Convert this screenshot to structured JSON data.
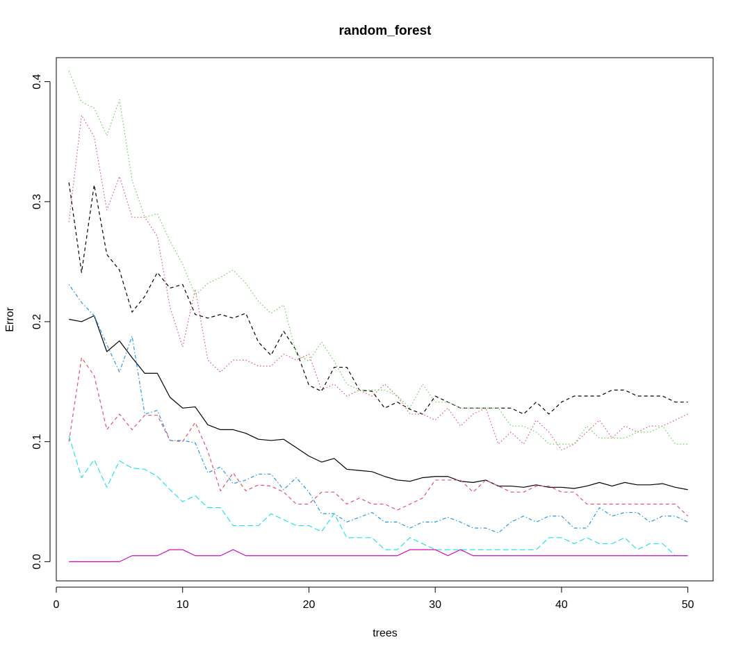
{
  "chart_data": {
    "type": "line",
    "title": "random_forest",
    "xlabel": "trees",
    "ylabel": "Error",
    "xlim": [
      0,
      52
    ],
    "ylim": [
      -0.016,
      0.42
    ],
    "x_ticks": [
      0,
      10,
      20,
      30,
      40,
      50
    ],
    "y_ticks": [
      0.0,
      0.1,
      0.2,
      0.3,
      0.4
    ],
    "y_tick_labels": [
      "0.0",
      "0.1",
      "0.2",
      "0.3",
      "0.4"
    ],
    "grid": false,
    "x": [
      1,
      2,
      3,
      4,
      5,
      6,
      7,
      8,
      9,
      10,
      11,
      12,
      13,
      14,
      15,
      16,
      17,
      18,
      19,
      20,
      21,
      22,
      23,
      24,
      25,
      26,
      27,
      28,
      29,
      30,
      31,
      32,
      33,
      34,
      35,
      36,
      37,
      38,
      39,
      40,
      41,
      42,
      43,
      44,
      45,
      46,
      47,
      48,
      49,
      50
    ],
    "series": [
      {
        "color": "#000000",
        "dash": "solid",
        "values": [
          0.202,
          0.2,
          0.205,
          0.175,
          0.184,
          0.17,
          0.157,
          0.157,
          0.137,
          0.128,
          0.129,
          0.114,
          0.11,
          0.11,
          0.107,
          0.102,
          0.101,
          0.102,
          0.095,
          0.088,
          0.083,
          0.086,
          0.077,
          0.076,
          0.075,
          0.071,
          0.068,
          0.067,
          0.07,
          0.071,
          0.071,
          0.067,
          0.066,
          0.068,
          0.063,
          0.063,
          0.062,
          0.064,
          0.062,
          0.062,
          0.061,
          0.063,
          0.066,
          0.063,
          0.066,
          0.064,
          0.064,
          0.065,
          0.062,
          0.06
        ]
      },
      {
        "color": "#000000",
        "dash": "dashed",
        "values": [
          0.316,
          0.241,
          0.314,
          0.256,
          0.243,
          0.208,
          0.221,
          0.241,
          0.228,
          0.231,
          0.206,
          0.203,
          0.206,
          0.203,
          0.207,
          0.183,
          0.172,
          0.192,
          0.176,
          0.147,
          0.142,
          0.162,
          0.162,
          0.143,
          0.142,
          0.128,
          0.133,
          0.127,
          0.123,
          0.138,
          0.133,
          0.128,
          0.128,
          0.128,
          0.128,
          0.128,
          0.123,
          0.133,
          0.123,
          0.133,
          0.138,
          0.138,
          0.138,
          0.143,
          0.143,
          0.138,
          0.138,
          0.138,
          0.133,
          0.133
        ]
      },
      {
        "color": "#DF536B",
        "dash": "dotted",
        "values": [
          0.283,
          0.372,
          0.354,
          0.293,
          0.321,
          0.287,
          0.287,
          0.271,
          0.212,
          0.179,
          0.227,
          0.168,
          0.158,
          0.168,
          0.168,
          0.163,
          0.163,
          0.173,
          0.168,
          0.173,
          0.143,
          0.148,
          0.138,
          0.143,
          0.138,
          0.148,
          0.138,
          0.123,
          0.123,
          0.118,
          0.128,
          0.113,
          0.123,
          0.128,
          0.098,
          0.108,
          0.098,
          0.118,
          0.108,
          0.093,
          0.098,
          0.108,
          0.118,
          0.103,
          0.113,
          0.108,
          0.113,
          0.113,
          0.118,
          0.123
        ]
      },
      {
        "color": "#61D04F",
        "dash": "dotted",
        "values": [
          0.409,
          0.383,
          0.378,
          0.355,
          0.385,
          0.318,
          0.287,
          0.29,
          0.267,
          0.248,
          0.222,
          0.232,
          0.237,
          0.243,
          0.232,
          0.217,
          0.207,
          0.214,
          0.173,
          0.167,
          0.183,
          0.167,
          0.148,
          0.143,
          0.143,
          0.143,
          0.138,
          0.128,
          0.148,
          0.133,
          0.133,
          0.128,
          0.128,
          0.128,
          0.128,
          0.113,
          0.113,
          0.108,
          0.098,
          0.098,
          0.098,
          0.113,
          0.103,
          0.103,
          0.103,
          0.108,
          0.108,
          0.113,
          0.098,
          0.098
        ]
      },
      {
        "color": "#DF536B",
        "dash": "dashed",
        "values": [
          0.1,
          0.17,
          0.155,
          0.11,
          0.123,
          0.11,
          0.122,
          0.122,
          0.101,
          0.1,
          0.116,
          0.092,
          0.059,
          0.074,
          0.059,
          0.064,
          0.063,
          0.058,
          0.048,
          0.048,
          0.058,
          0.058,
          0.048,
          0.053,
          0.048,
          0.048,
          0.043,
          0.048,
          0.053,
          0.068,
          0.068,
          0.068,
          0.058,
          0.068,
          0.063,
          0.058,
          0.058,
          0.063,
          0.063,
          0.058,
          0.058,
          0.048,
          0.048,
          0.048,
          0.048,
          0.048,
          0.048,
          0.048,
          0.048,
          0.038
        ]
      },
      {
        "color": "#2297E6",
        "dash": "dotdash",
        "values": [
          0.231,
          0.216,
          0.205,
          0.181,
          0.158,
          0.188,
          0.123,
          0.126,
          0.101,
          0.101,
          0.099,
          0.074,
          0.079,
          0.065,
          0.068,
          0.073,
          0.073,
          0.06,
          0.07,
          0.058,
          0.04,
          0.04,
          0.033,
          0.037,
          0.041,
          0.033,
          0.033,
          0.028,
          0.033,
          0.033,
          0.037,
          0.033,
          0.028,
          0.028,
          0.024,
          0.033,
          0.038,
          0.033,
          0.038,
          0.038,
          0.028,
          0.028,
          0.045,
          0.038,
          0.041,
          0.041,
          0.033,
          0.038,
          0.038,
          0.033
        ]
      },
      {
        "color": "#28E2E5",
        "dash": "longdash",
        "values": [
          0.105,
          0.07,
          0.085,
          0.062,
          0.084,
          0.078,
          0.077,
          0.071,
          0.06,
          0.05,
          0.055,
          0.045,
          0.045,
          0.03,
          0.03,
          0.03,
          0.04,
          0.035,
          0.03,
          0.03,
          0.025,
          0.04,
          0.02,
          0.02,
          0.02,
          0.01,
          0.01,
          0.02,
          0.015,
          0.01,
          0.01,
          0.01,
          0.01,
          0.01,
          0.01,
          0.01,
          0.01,
          0.01,
          0.02,
          0.02,
          0.015,
          0.02,
          0.015,
          0.015,
          0.02,
          0.01,
          0.015,
          0.015,
          0.005,
          0.005
        ]
      },
      {
        "color": "#CD0BBC",
        "dash": "solid",
        "values": [
          0.0,
          0.0,
          0.0,
          0.0,
          0.0,
          0.005,
          0.005,
          0.005,
          0.01,
          0.01,
          0.005,
          0.005,
          0.005,
          0.01,
          0.005,
          0.005,
          0.005,
          0.005,
          0.005,
          0.005,
          0.005,
          0.005,
          0.005,
          0.005,
          0.005,
          0.005,
          0.005,
          0.01,
          0.01,
          0.01,
          0.005,
          0.01,
          0.005,
          0.005,
          0.005,
          0.005,
          0.005,
          0.005,
          0.005,
          0.005,
          0.005,
          0.005,
          0.005,
          0.005,
          0.005,
          0.005,
          0.005,
          0.005,
          0.005,
          0.005
        ]
      }
    ]
  }
}
